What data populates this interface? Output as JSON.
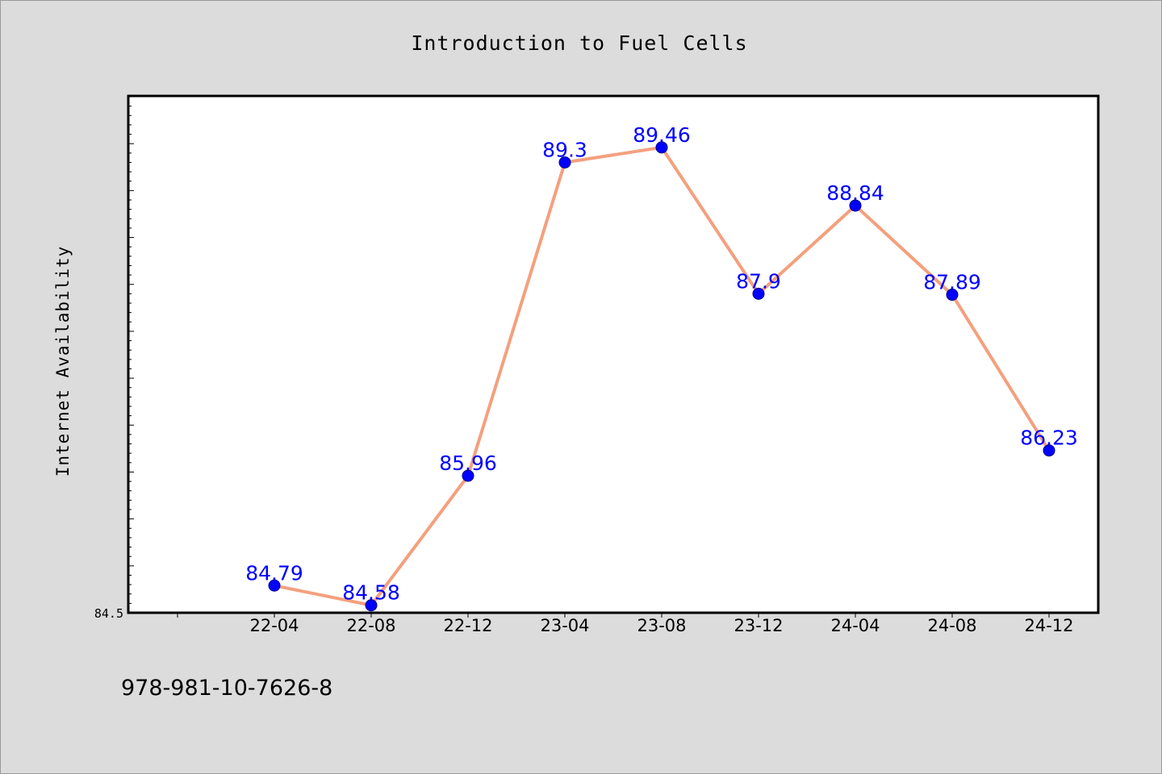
{
  "chart_data": {
    "type": "line",
    "title": "Introduction to Fuel Cells",
    "xlabel": "",
    "ylabel": "Internet Availability",
    "categories": [
      "22-04",
      "22-08",
      "22-12",
      "23-04",
      "23-08",
      "23-12",
      "24-04",
      "24-08",
      "24-12"
    ],
    "series": [
      {
        "values": [
          84.79,
          84.58,
          85.96,
          89.3,
          89.46,
          87.9,
          88.84,
          87.89,
          86.23
        ],
        "labels": [
          "84.79",
          "84.58",
          "85.96",
          "89.3",
          "89.46",
          "87.9",
          "88.84",
          "87.89",
          "86.23"
        ]
      }
    ],
    "ylim": [
      84.5,
      90.0
    ],
    "yticks_labeled": [
      "84.5"
    ],
    "grid": false,
    "legend": "none",
    "colors": {
      "line": "#f4a07e",
      "marker": "#0000ff",
      "marker_edge": "#00008b",
      "data_label": "#0000ff",
      "plot_bg": "#ffffff",
      "figure_bg": "#dcdcdc"
    }
  },
  "footer": {
    "isbn": "978-981-10-7626-8"
  }
}
